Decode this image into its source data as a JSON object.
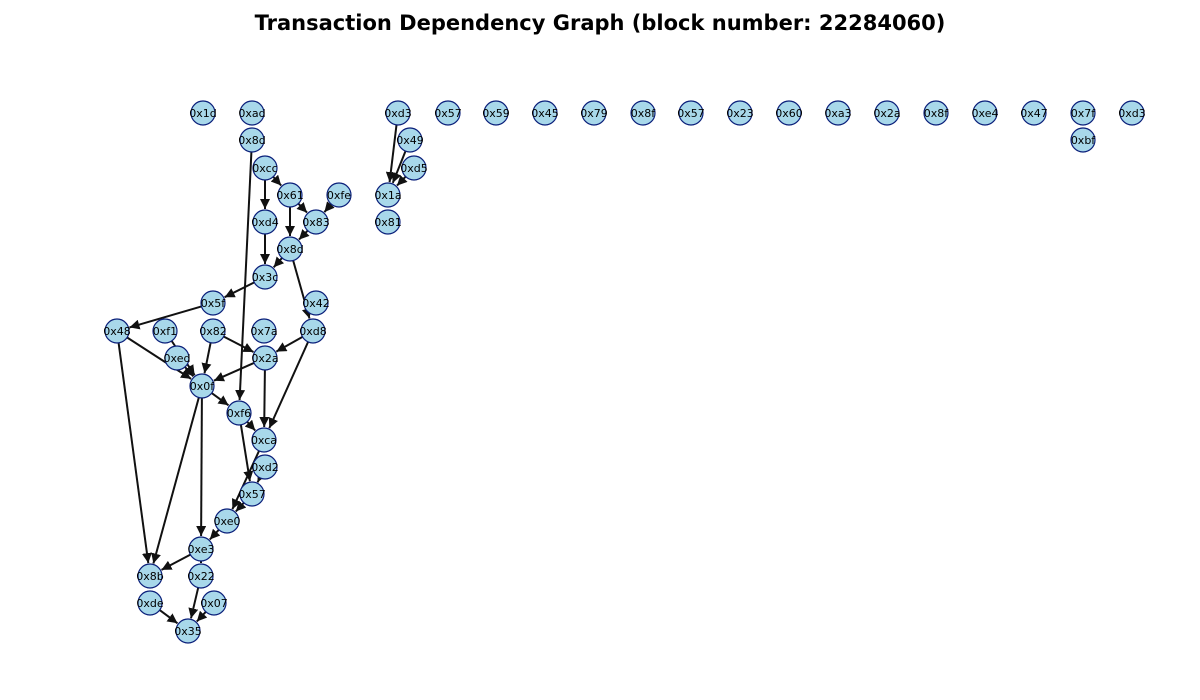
{
  "title": "Transaction Dependency Graph (block number: 22284060)",
  "colors": {
    "node_fill": "#a8d8ea",
    "node_stroke": "#0a1f7a",
    "edge": "#111111"
  },
  "nodes": [
    {
      "id": "n1",
      "label": "0x1d"
    },
    {
      "id": "n2",
      "label": "0xad"
    },
    {
      "id": "n3",
      "label": "0x8d"
    },
    {
      "id": "n4",
      "label": "0xcc"
    },
    {
      "id": "n5",
      "label": "0x61"
    },
    {
      "id": "n6",
      "label": "0xfe"
    },
    {
      "id": "n7",
      "label": "0xd4"
    },
    {
      "id": "n8",
      "label": "0x83"
    },
    {
      "id": "n9",
      "label": "0x8d"
    },
    {
      "id": "n10",
      "label": "0x3c"
    },
    {
      "id": "n11",
      "label": "0x5f"
    },
    {
      "id": "n12",
      "label": "0x42"
    },
    {
      "id": "n13",
      "label": "0x48"
    },
    {
      "id": "n14",
      "label": "0xf1"
    },
    {
      "id": "n15",
      "label": "0x82"
    },
    {
      "id": "n16",
      "label": "0x7a"
    },
    {
      "id": "n17",
      "label": "0xd8"
    },
    {
      "id": "n18",
      "label": "0xed"
    },
    {
      "id": "n19",
      "label": "0x2a"
    },
    {
      "id": "n20",
      "label": "0x0f"
    },
    {
      "id": "n21",
      "label": "0xf6"
    },
    {
      "id": "n22",
      "label": "0xca"
    },
    {
      "id": "n23",
      "label": "0xd2"
    },
    {
      "id": "n24",
      "label": "0x57"
    },
    {
      "id": "n25",
      "label": "0xe0"
    },
    {
      "id": "n26",
      "label": "0xe3"
    },
    {
      "id": "n27",
      "label": "0x8b"
    },
    {
      "id": "n28",
      "label": "0x22"
    },
    {
      "id": "n29",
      "label": "0xde"
    },
    {
      "id": "n30",
      "label": "0x07"
    },
    {
      "id": "n31",
      "label": "0x35"
    },
    {
      "id": "n32",
      "label": "0xd3"
    },
    {
      "id": "n33",
      "label": "0x49"
    },
    {
      "id": "n34",
      "label": "0xd5"
    },
    {
      "id": "n35",
      "label": "0x1a"
    },
    {
      "id": "n36",
      "label": "0x81"
    },
    {
      "id": "n37",
      "label": "0x57"
    },
    {
      "id": "n38",
      "label": "0x59"
    },
    {
      "id": "n39",
      "label": "0x45"
    },
    {
      "id": "n40",
      "label": "0x79"
    },
    {
      "id": "n41",
      "label": "0x8f"
    },
    {
      "id": "n42",
      "label": "0x57"
    },
    {
      "id": "n43",
      "label": "0x23"
    },
    {
      "id": "n44",
      "label": "0x60"
    },
    {
      "id": "n45",
      "label": "0xa3"
    },
    {
      "id": "n46",
      "label": "0x2a"
    },
    {
      "id": "n47",
      "label": "0x8f"
    },
    {
      "id": "n48",
      "label": "0xe4"
    },
    {
      "id": "n49",
      "label": "0x47"
    },
    {
      "id": "n50",
      "label": "0x7f"
    },
    {
      "id": "n51",
      "label": "0xbf"
    },
    {
      "id": "n52",
      "label": "0xd3"
    }
  ],
  "edges": [
    {
      "from": "n3",
      "to": "n21"
    },
    {
      "from": "n4",
      "to": "n7"
    },
    {
      "from": "n4",
      "to": "n5"
    },
    {
      "from": "n5",
      "to": "n8"
    },
    {
      "from": "n5",
      "to": "n9"
    },
    {
      "from": "n6",
      "to": "n8"
    },
    {
      "from": "n8",
      "to": "n9"
    },
    {
      "from": "n7",
      "to": "n10"
    },
    {
      "from": "n9",
      "to": "n10"
    },
    {
      "from": "n9",
      "to": "n17"
    },
    {
      "from": "n10",
      "to": "n11"
    },
    {
      "from": "n11",
      "to": "n13"
    },
    {
      "from": "n13",
      "to": "n20"
    },
    {
      "from": "n13",
      "to": "n27"
    },
    {
      "from": "n14",
      "to": "n20"
    },
    {
      "from": "n18",
      "to": "n20"
    },
    {
      "from": "n15",
      "to": "n19"
    },
    {
      "from": "n15",
      "to": "n20"
    },
    {
      "from": "n17",
      "to": "n19"
    },
    {
      "from": "n17",
      "to": "n22"
    },
    {
      "from": "n19",
      "to": "n20"
    },
    {
      "from": "n19",
      "to": "n22"
    },
    {
      "from": "n20",
      "to": "n21"
    },
    {
      "from": "n20",
      "to": "n26"
    },
    {
      "from": "n20",
      "to": "n27"
    },
    {
      "from": "n21",
      "to": "n22"
    },
    {
      "from": "n21",
      "to": "n24"
    },
    {
      "from": "n22",
      "to": "n25"
    },
    {
      "from": "n23",
      "to": "n24"
    },
    {
      "from": "n24",
      "to": "n25"
    },
    {
      "from": "n25",
      "to": "n26"
    },
    {
      "from": "n26",
      "to": "n27"
    },
    {
      "from": "n26",
      "to": "n28"
    },
    {
      "from": "n28",
      "to": "n31"
    },
    {
      "from": "n29",
      "to": "n31"
    },
    {
      "from": "n30",
      "to": "n31"
    },
    {
      "from": "n32",
      "to": "n35"
    },
    {
      "from": "n33",
      "to": "n35"
    },
    {
      "from": "n34",
      "to": "n35"
    }
  ]
}
